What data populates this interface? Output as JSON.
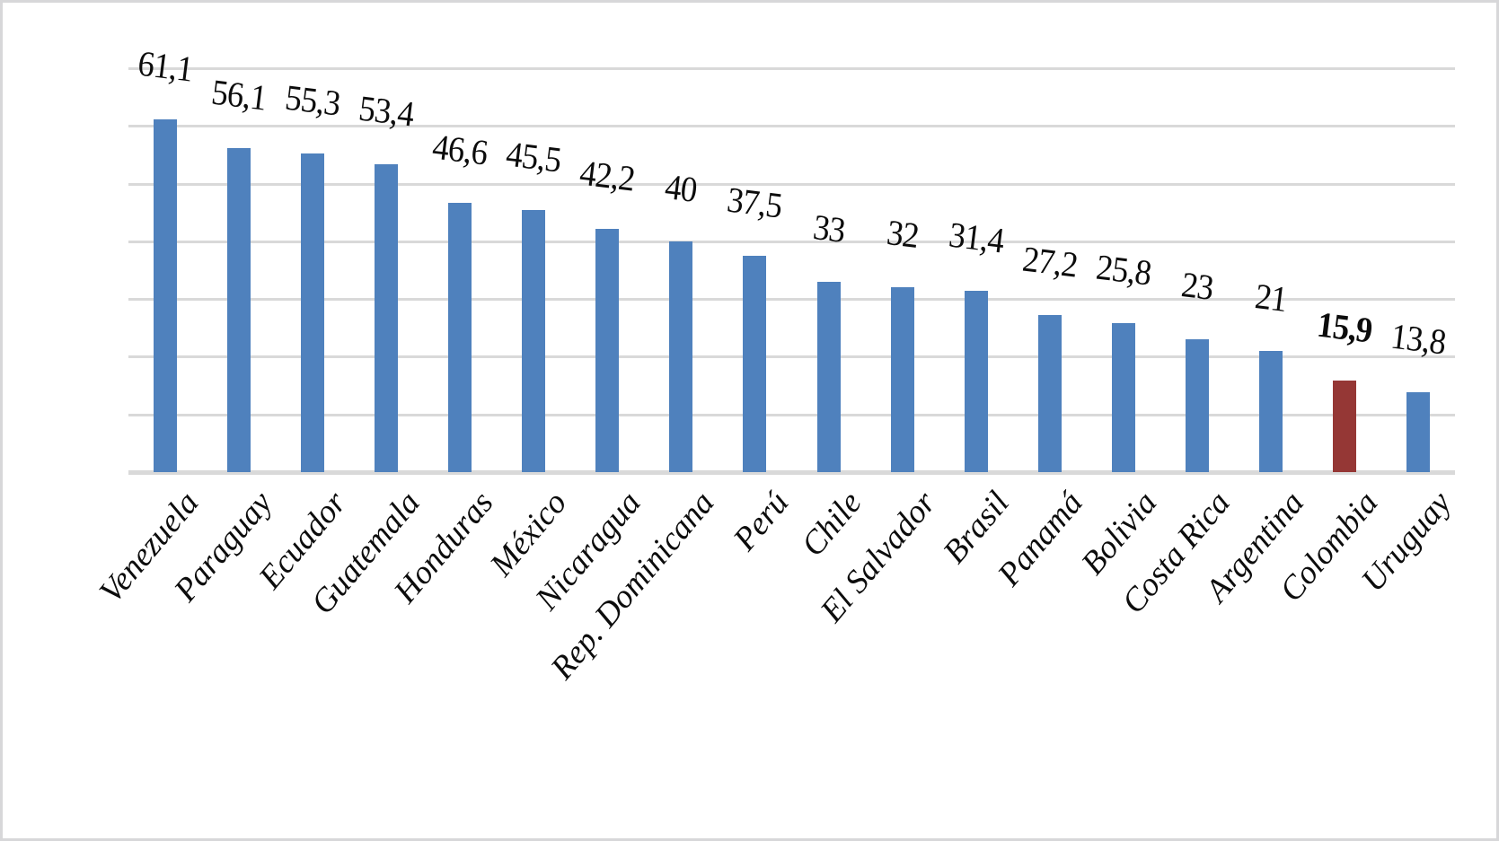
{
  "chart_data": {
    "type": "bar",
    "title": "",
    "xlabel": "",
    "ylabel": "",
    "categories": [
      "Venezuela",
      "Paraguay",
      "Ecuador",
      "Guatemala",
      "Honduras",
      "México",
      "Nicaragua",
      "Rep. Dominicana",
      "Perú",
      "Chile",
      "El Salvador",
      "Brasil",
      "Panamá",
      "Bolivia",
      "Costa Rica",
      "Argentina",
      "Colombia",
      "Uruguay"
    ],
    "values": [
      61.1,
      56.1,
      55.3,
      53.4,
      46.6,
      45.5,
      42.2,
      40,
      37.5,
      33,
      32,
      31.4,
      27.2,
      25.8,
      23,
      21,
      15.9,
      13.8
    ],
    "value_labels": [
      "61,1",
      "56,1",
      "55,3",
      "53,4",
      "46,6",
      "45,5",
      "42,2",
      "40",
      "37,5",
      "33",
      "32",
      "31,4",
      "27,2",
      "25,8",
      "23",
      "21",
      "15,9",
      "13,8"
    ],
    "highlight_index": 16,
    "highlight_label_bold": true,
    "decimal_separator": ",",
    "ylim": [
      0,
      70
    ],
    "gridline_step": 10,
    "y_tick_labels_visible": false,
    "grid": true,
    "legend": "none",
    "colors": {
      "bar": "#4f81bd",
      "highlight_bar": "#953735",
      "gridline": "#d9d9d9",
      "axis_line": "#d9d9d9",
      "label_text": "#0c0c0c",
      "background": "#ffffff",
      "frame_border": "#d7d7d9"
    }
  }
}
